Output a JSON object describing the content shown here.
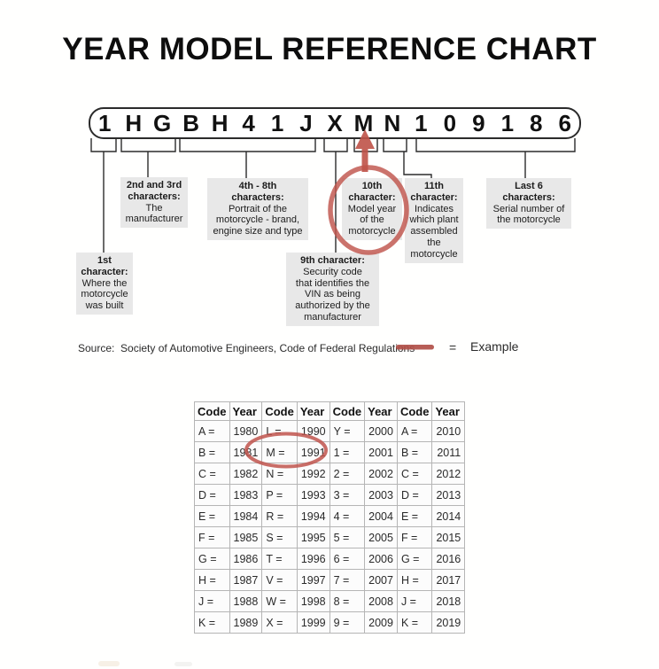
{
  "title": "YEAR MODEL REFERENCE CHART",
  "vin": {
    "characters": [
      "1",
      "H",
      "G",
      "B",
      "H",
      "4",
      "1",
      "J",
      "X",
      "M",
      "N",
      "1",
      "0",
      "9",
      "1",
      "8",
      "6"
    ]
  },
  "callouts": [
    {
      "id": "first",
      "heading": [
        "1st",
        "character:"
      ],
      "body": [
        "Where the",
        "motorcycle",
        "was built"
      ]
    },
    {
      "id": "second-third",
      "heading": [
        "2nd and 3rd",
        "characters:"
      ],
      "body": [
        "The",
        "manufacturer"
      ]
    },
    {
      "id": "fourth-eighth",
      "heading": [
        "4th - 8th",
        "characters:"
      ],
      "body": [
        "Portrait of the",
        "motorcycle - brand,",
        "engine size and type"
      ]
    },
    {
      "id": "ninth",
      "heading": [
        "9th character:"
      ],
      "body": [
        "Security code",
        "that identifies the",
        "VIN as being",
        "authorized by the",
        "manufacturer"
      ]
    },
    {
      "id": "tenth",
      "heading": [
        "10th",
        "character:"
      ],
      "body": [
        "Model year",
        "of the",
        "motorcycle"
      ]
    },
    {
      "id": "eleventh",
      "heading": [
        "11th",
        "character:"
      ],
      "body": [
        "Indicates",
        "which plant",
        "assembled",
        "the",
        "motorcycle"
      ]
    },
    {
      "id": "last-six",
      "heading": [
        "Last 6",
        "characters:"
      ],
      "body": [
        "Serial number of",
        "the motorcycle"
      ]
    }
  ],
  "source_note": "Source:  Society of Automotive Engineers, Code of Federal Regulations",
  "legend": {
    "equals": "=",
    "label": "Example"
  },
  "colors": {
    "accent_red": "#c0544c",
    "callout_gray": "#e8e8e8",
    "line_black": "#2b2b2b"
  },
  "table": {
    "headers": [
      "Code",
      "Year",
      "Code",
      "Year",
      "Code",
      "Year",
      "Code",
      "Year"
    ],
    "rows": [
      [
        "A =",
        "1980",
        "L =",
        "1990",
        "Y =",
        "2000",
        "A =",
        "2010"
      ],
      [
        "B =",
        "1981",
        "M =",
        "1991",
        "1 =",
        "2001",
        "B =",
        "2011"
      ],
      [
        "C =",
        "1982",
        "N =",
        "1992",
        "2 =",
        "2002",
        "C =",
        "2012"
      ],
      [
        "D =",
        "1983",
        "P =",
        "1993",
        "3 =",
        "2003",
        "D =",
        "2013"
      ],
      [
        "E =",
        "1984",
        "R =",
        "1994",
        "4 =",
        "2004",
        "E =",
        "2014"
      ],
      [
        "F =",
        "1985",
        "S =",
        "1995",
        "5 =",
        "2005",
        "F =",
        "2015"
      ],
      [
        "G =",
        "1986",
        "T =",
        "1996",
        "6 =",
        "2006",
        "G =",
        "2016"
      ],
      [
        "H =",
        "1987",
        "V =",
        "1997",
        "7 =",
        "2007",
        "H =",
        "2017"
      ],
      [
        "J =",
        "1988",
        "W =",
        "1998",
        "8 =",
        "2008",
        "J =",
        "2018"
      ],
      [
        "K =",
        "1989",
        "X =",
        "1999",
        "9 =",
        "2009",
        "K =",
        "2019"
      ]
    ],
    "highlighted_example": "M = 1991"
  }
}
